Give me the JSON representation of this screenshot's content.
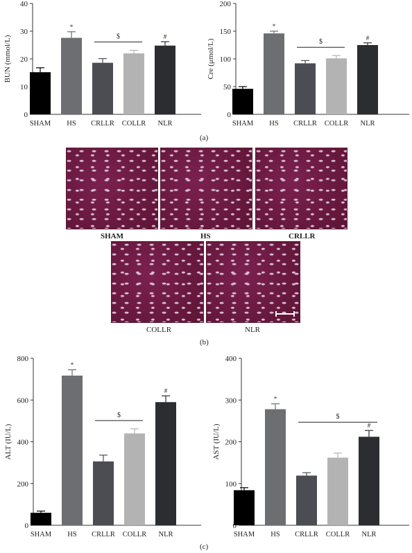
{
  "panel_labels": {
    "a": "(a)",
    "b": "(b)",
    "c": "(c)"
  },
  "histology_labels": [
    "SHAM",
    "HS",
    "CRLLR",
    "COLLR",
    "NLR"
  ],
  "chart_data": [
    {
      "type": "bar",
      "ylabel": "BUN (mmol/L)",
      "categories": [
        "SHAM",
        "HS",
        "CRLLR",
        "COLLR",
        "NLR"
      ],
      "values": [
        15.2,
        27.6,
        18.6,
        22.0,
        24.8
      ],
      "errors": [
        1.6,
        2.2,
        1.5,
        1.1,
        1.4
      ],
      "ylim": [
        0,
        40
      ],
      "yticks": [
        "0",
        "10",
        "20",
        "30",
        "40"
      ],
      "colors": [
        "#000000",
        "#6c6e72",
        "#4b4d52",
        "#b3b3b3",
        "#2b2d31"
      ],
      "markers": [
        "",
        "*",
        "",
        "",
        "#"
      ],
      "bracket": {
        "symbol": "$",
        "from": 2,
        "to": 3
      }
    },
    {
      "type": "bar",
      "ylabel": "Cre (μmol/L)",
      "categories": [
        "SHAM",
        "HS",
        "CRLLR",
        "COLLR",
        "NLR"
      ],
      "values": [
        46,
        146,
        92,
        101,
        125
      ],
      "errors": [
        4,
        4,
        5,
        5,
        4
      ],
      "ylim": [
        0,
        200
      ],
      "yticks": [
        "0",
        "50",
        "100",
        "150",
        "200"
      ],
      "colors": [
        "#000000",
        "#6c6e72",
        "#4b4d52",
        "#b3b3b3",
        "#2b2d31"
      ],
      "markers": [
        "",
        "*",
        "",
        "",
        "#"
      ],
      "bracket": {
        "symbol": "$",
        "from": 2,
        "to": 3
      }
    },
    {
      "type": "bar",
      "ylabel": "ALT (IU/L)",
      "categories": [
        "SHAM",
        "HS",
        "CRLLR",
        "COLLR",
        "NLR"
      ],
      "values": [
        60,
        717,
        306,
        440,
        590
      ],
      "errors": [
        8,
        28,
        30,
        22,
        30
      ],
      "ylim": [
        0,
        800
      ],
      "yticks": [
        "0",
        "200",
        "400",
        "600",
        "800"
      ],
      "colors": [
        "#000000",
        "#6c6e72",
        "#4b4d52",
        "#b3b3b3",
        "#2b2d31"
      ],
      "markers": [
        "",
        "*",
        "",
        "",
        "#"
      ],
      "bracket": {
        "symbol": "$",
        "from": 2,
        "to": 3
      }
    },
    {
      "type": "bar",
      "ylabel": "AST (IU/L)",
      "categories": [
        "SHAM",
        "HS",
        "CRLLR",
        "COLLR",
        "NLR"
      ],
      "values": [
        84,
        278,
        119,
        162,
        212
      ],
      "errors": [
        6,
        13,
        7,
        11,
        15
      ],
      "ylim": [
        0,
        400
      ],
      "yticks": [
        "0",
        "100",
        "200",
        "300",
        "400"
      ],
      "colors": [
        "#000000",
        "#6c6e72",
        "#4b4d52",
        "#b3b3b3",
        "#2b2d31"
      ],
      "markers": [
        "",
        "*",
        "",
        "",
        "#"
      ],
      "bracket": {
        "symbol": "$",
        "from": 2,
        "to": 4
      }
    }
  ]
}
